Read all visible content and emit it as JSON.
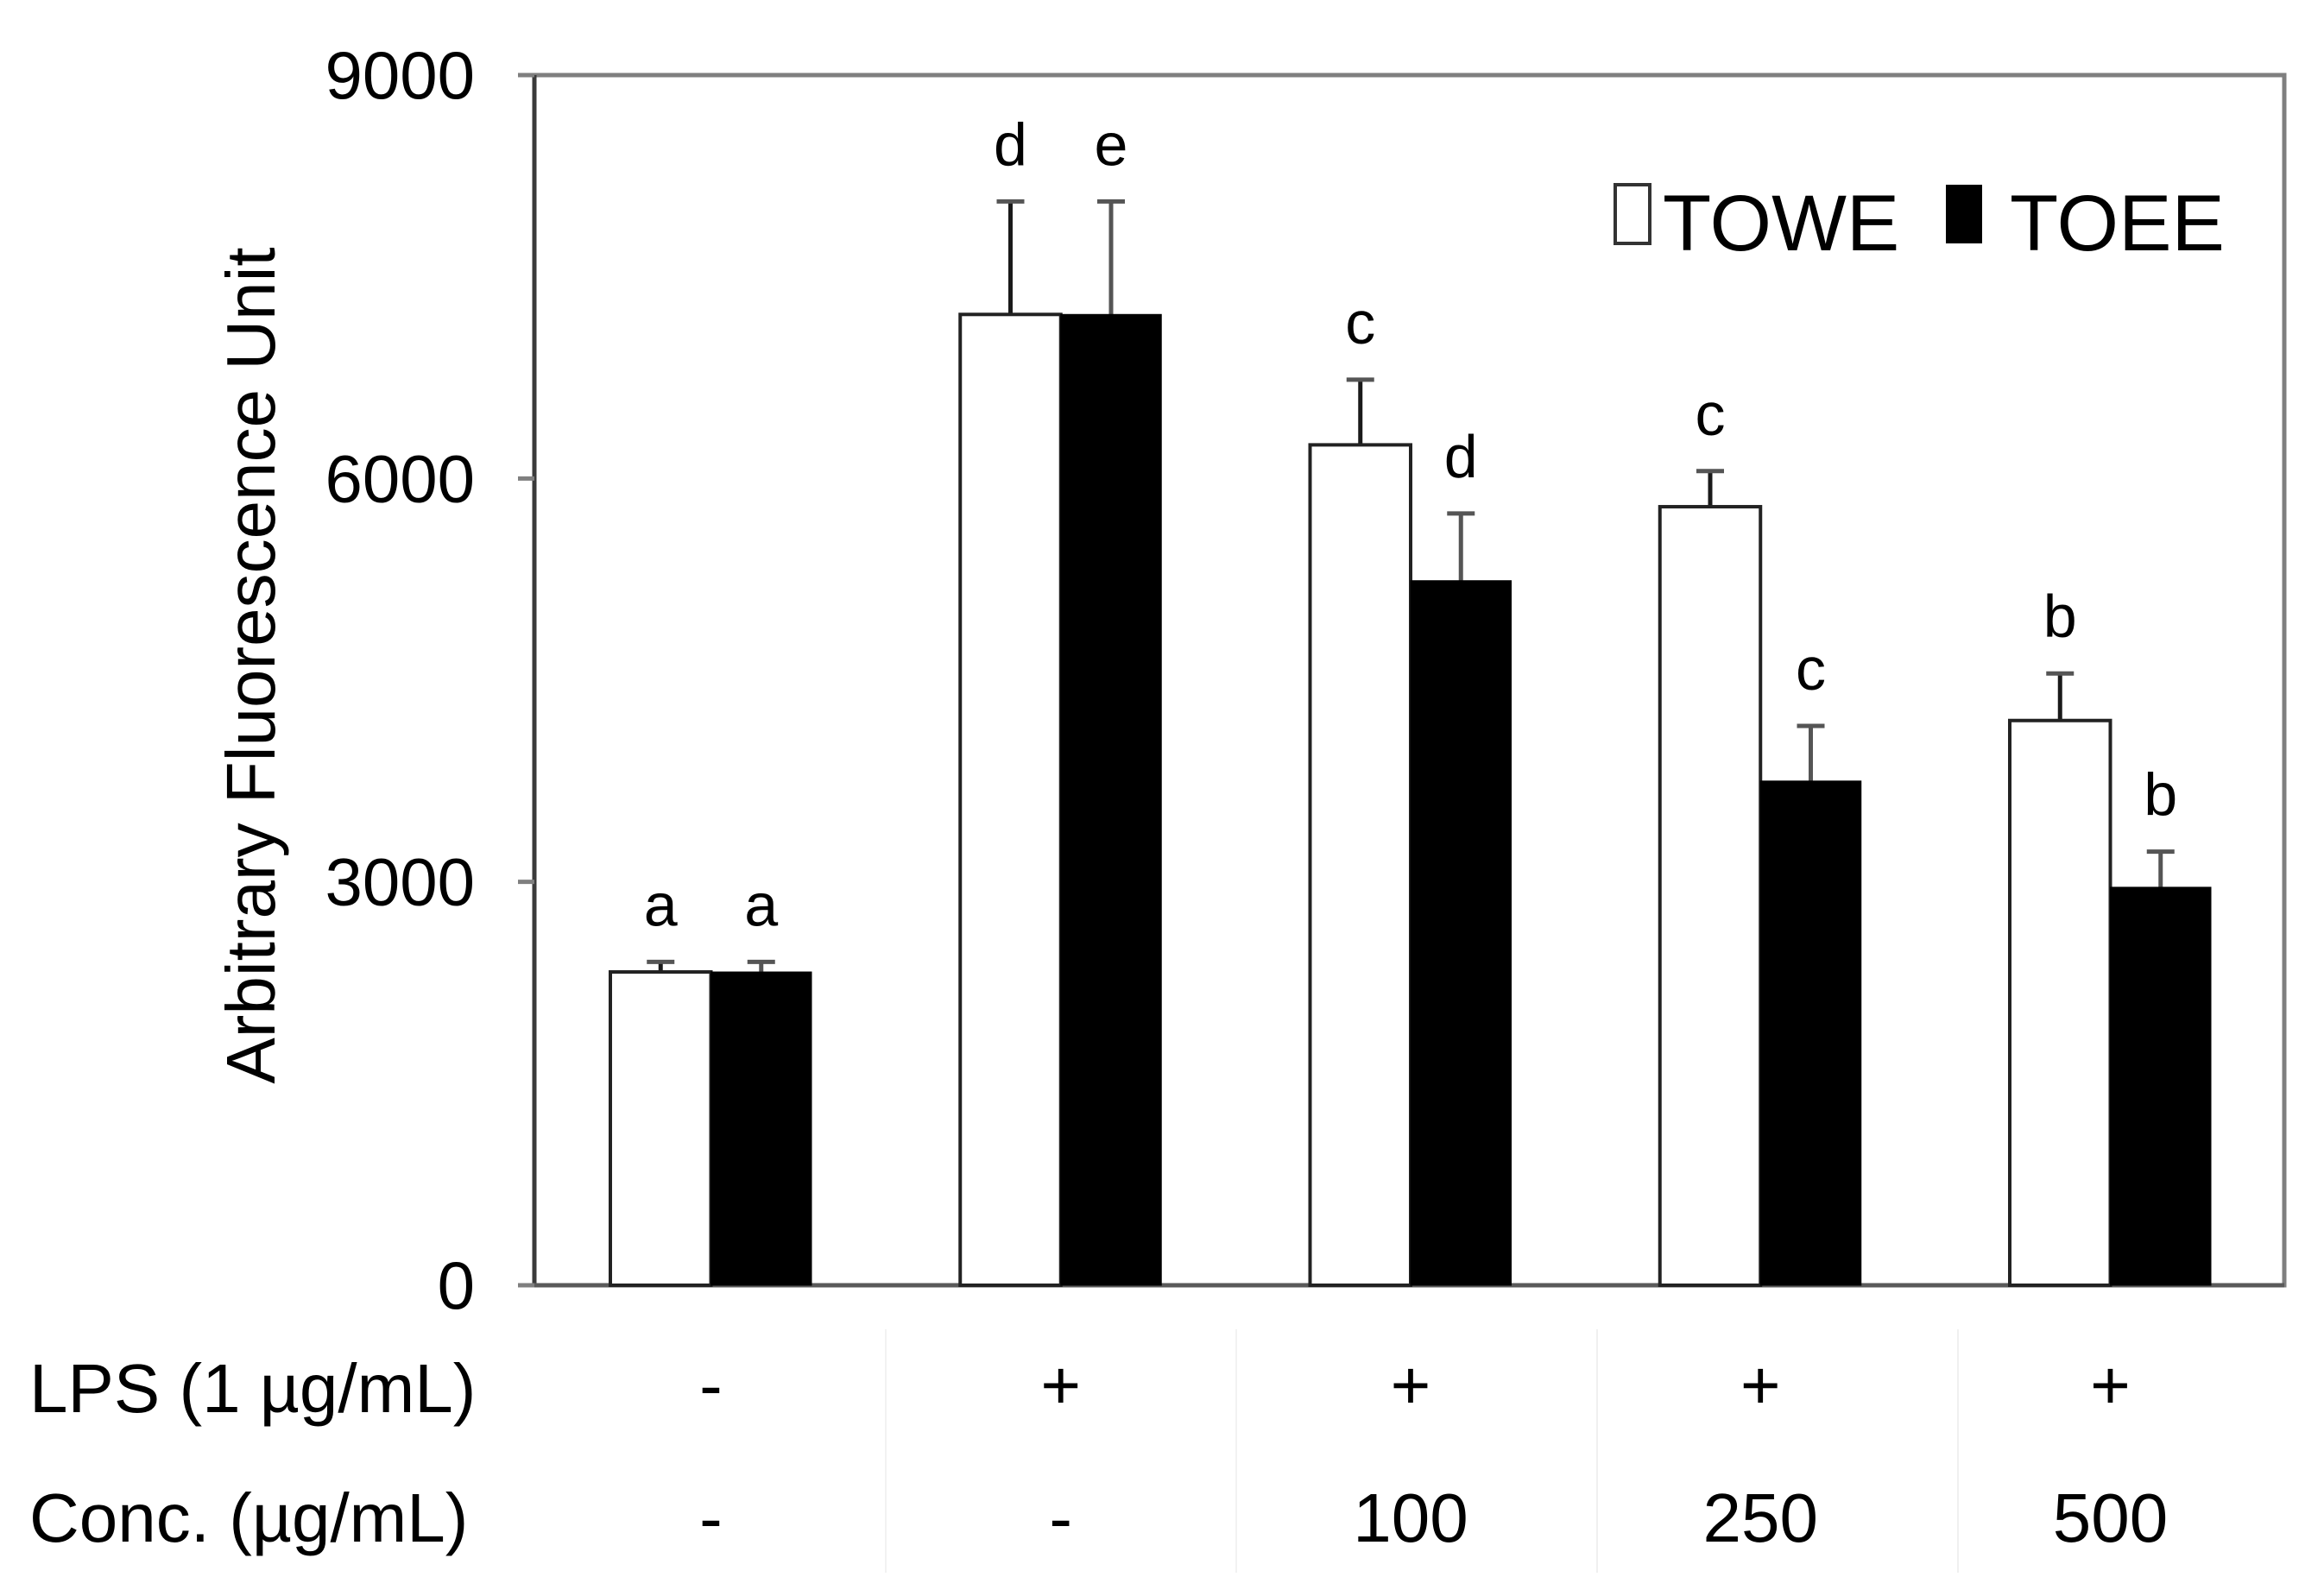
{
  "chart_data": {
    "type": "bar",
    "title": "",
    "xlabel": "",
    "ylabel": "Arbitrary Fluorescence Unit",
    "ylim": [
      0,
      9000
    ],
    "yticks": [
      0,
      3000,
      6000,
      9000
    ],
    "grid": false,
    "legend_position": "top-right inside",
    "categories": [
      {
        "lps": "-",
        "conc": "-"
      },
      {
        "lps": "+",
        "conc": "-"
      },
      {
        "lps": "+",
        "conc": "100"
      },
      {
        "lps": "+",
        "conc": "250"
      },
      {
        "lps": "+",
        "conc": "500"
      }
    ],
    "series": [
      {
        "name": "TOWE",
        "color": "#ffffff",
        "values": [
          2330,
          7220,
          6250,
          5790,
          4200
        ],
        "errors": [
          75,
          840,
          485,
          265,
          350
        ],
        "significance": [
          "a",
          "d",
          "c",
          "c",
          "b"
        ]
      },
      {
        "name": "TOEE",
        "color": "#000000",
        "values": [
          2330,
          7220,
          5240,
          3750,
          2960
        ],
        "errors": [
          75,
          840,
          500,
          410,
          265
        ],
        "significance": [
          "a",
          "e",
          "d",
          "c",
          "b"
        ]
      }
    ],
    "row_labels": [
      "LPS (1 µg/mL)",
      "Conc. (µg/mL)"
    ]
  },
  "axis": {
    "ylabel": "Arbitrary Fluorescence Unit",
    "yticks": [
      "0",
      "3000",
      "6000",
      "9000"
    ]
  },
  "legend": {
    "items": [
      {
        "label": "TOWE",
        "swatch": "#ffffff"
      },
      {
        "label": "TOEE",
        "swatch": "#000000"
      }
    ]
  },
  "table": {
    "rows": [
      {
        "label": "LPS (1 µg/mL)",
        "cells": [
          "-",
          "+",
          "+",
          "+",
          "+"
        ]
      },
      {
        "label": "Conc. (µg/mL)",
        "cells": [
          "-",
          "-",
          "100",
          "250",
          "500"
        ]
      }
    ]
  }
}
